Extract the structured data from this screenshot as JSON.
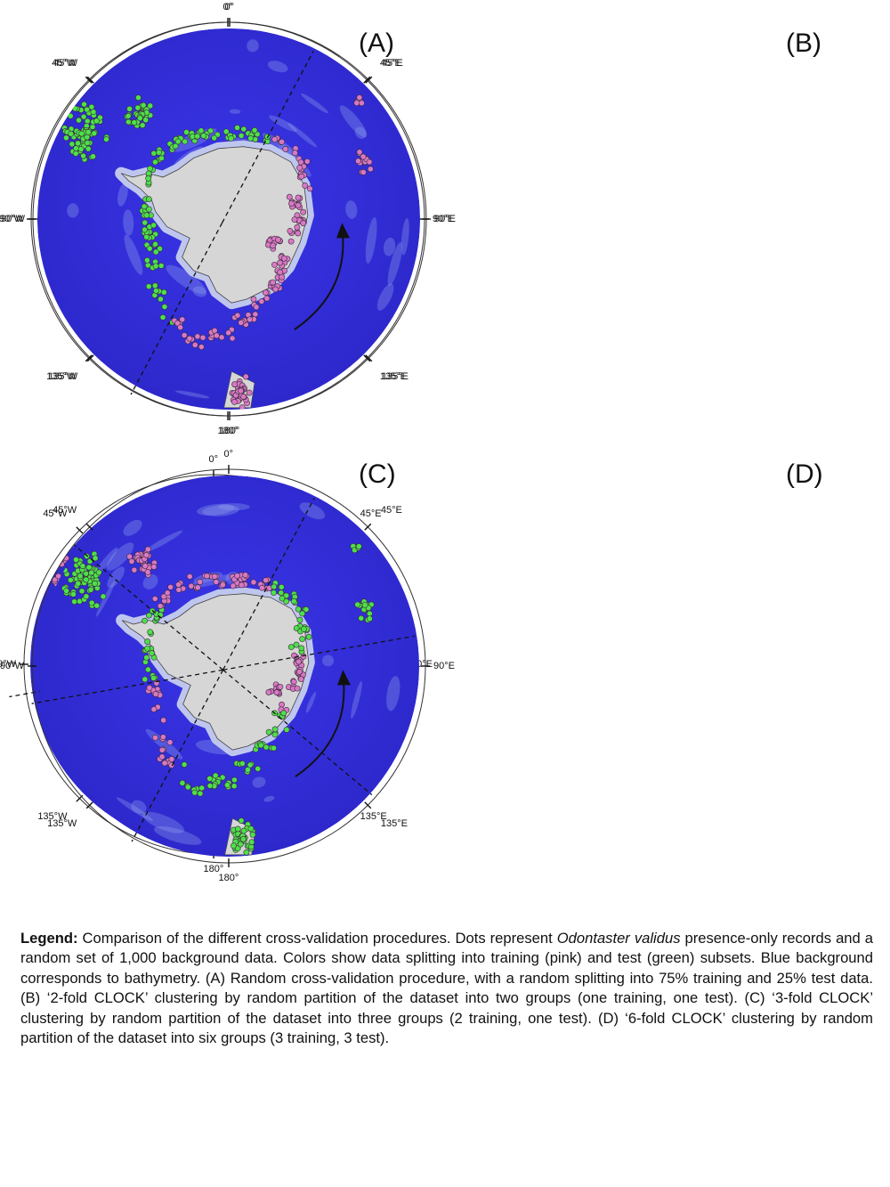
{
  "panels": [
    {
      "label": "(A)",
      "split": "random",
      "cut_lines_deg": [],
      "arrow": false
    },
    {
      "label": "(B)",
      "split": "2-fold",
      "cut_lines_deg": [
        -62,
        118
      ],
      "arrow": true
    },
    {
      "label": "(C)",
      "split": "3-fold",
      "cut_lines_deg": [
        -62,
        58,
        170
      ],
      "arrow": true
    },
    {
      "label": "(D)",
      "split": "6-fold",
      "cut_lines_deg": [
        -62,
        -10,
        40,
        118,
        170,
        220
      ],
      "arrow": true
    }
  ],
  "graticule_labels": {
    "top": "0°",
    "ne": "45°E",
    "e": "90°E",
    "se": "135°E",
    "bottom": "180°",
    "sw": "135°W",
    "w": "90°W",
    "nw": "45°W"
  },
  "colors": {
    "ocean": "#3a35e8",
    "ocean_deep": "#2c27c9",
    "shelf": "#bfc6ee",
    "land": "#d6d6d6",
    "training": "#d879c4",
    "test": "#4ee04a",
    "marker_outline": "#3a2a3a"
  },
  "legend": {
    "heading": "Legend:",
    "part1": " Comparison of the different cross-validation procedures. Dots represent ",
    "species": "Odontaster validus",
    "part2": " presence-only records and a random set of 1,000 background data. Colors show data splitting into training (pink) and test (green) subsets. Blue background corresponds to bathymetry. (A) Random cross-validation procedure, with a random splitting into 75% training and 25% test data. (B) ‘2-fold CLOCK’ clustering by random partition of the dataset into two groups (one training, one test). (C) ‘3-fold CLOCK’ clustering by random partition of the dataset into three groups (2 training, one test). (D) ‘6-fold CLOCK’ clustering by random partition of the dataset into six groups (3 training, 3 test)."
  }
}
